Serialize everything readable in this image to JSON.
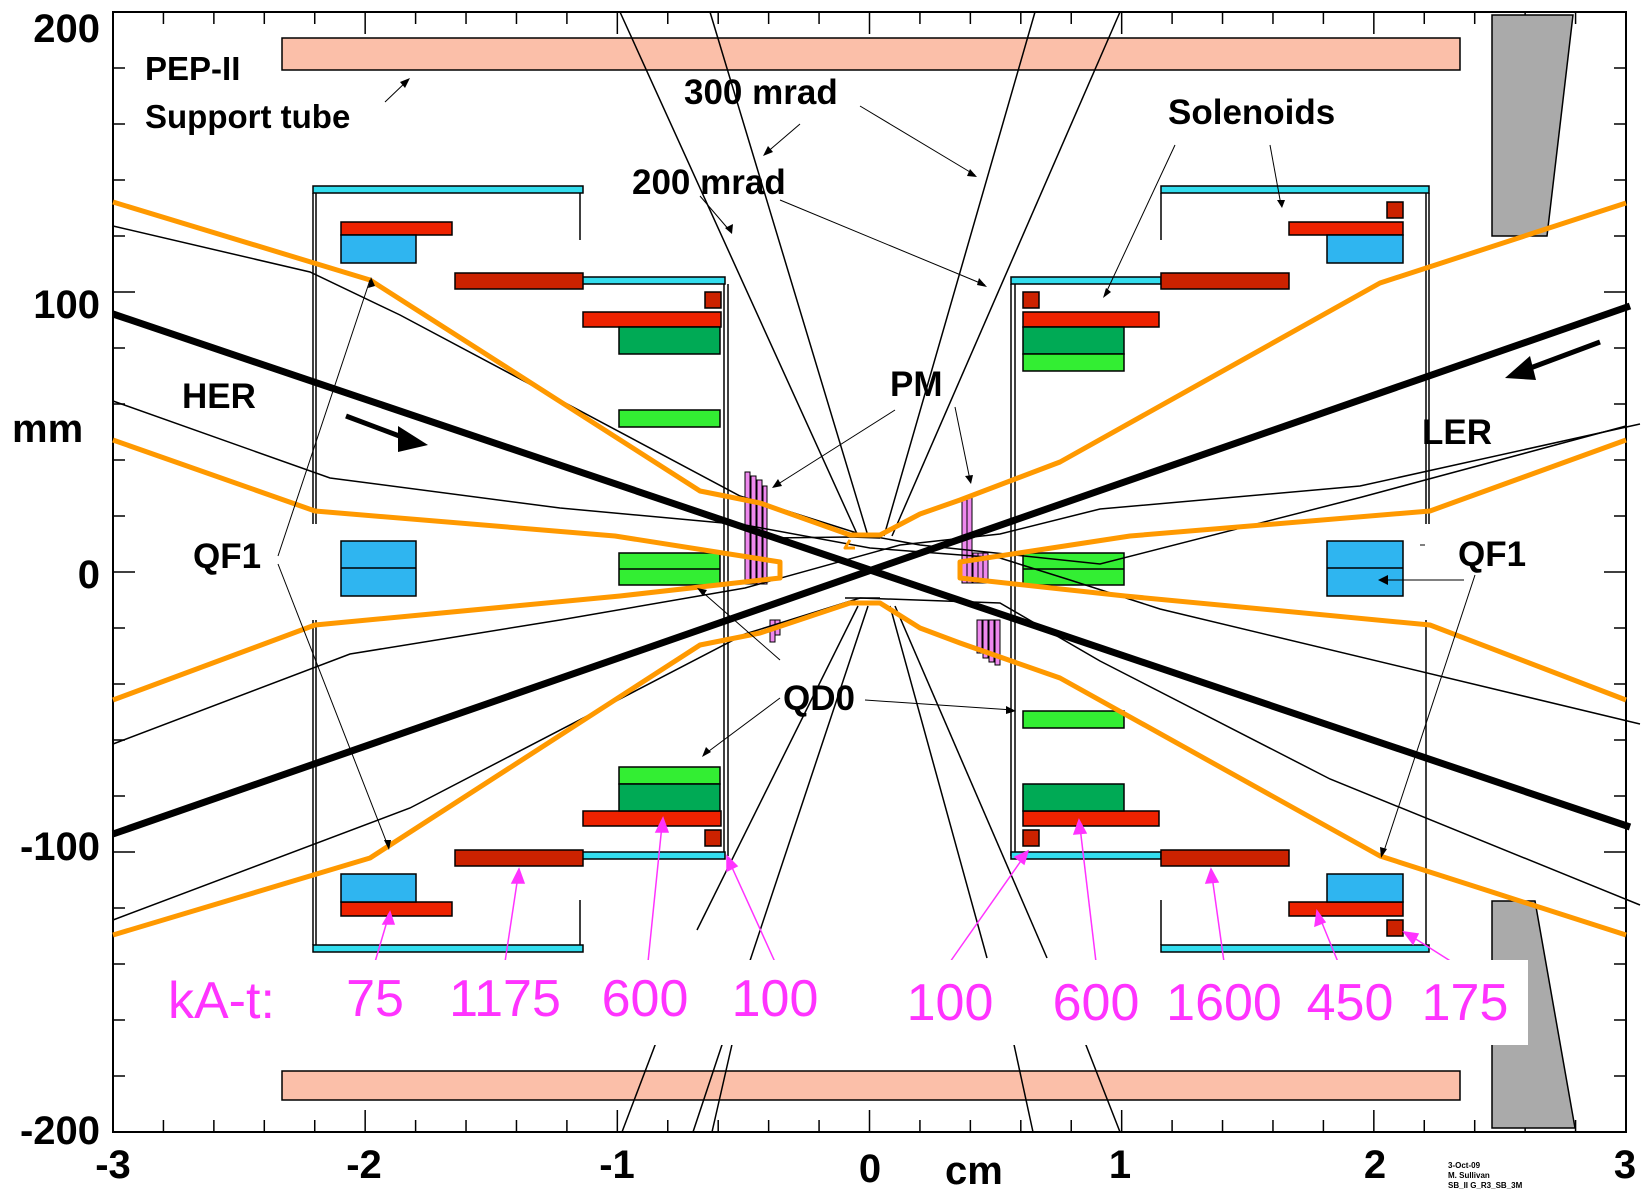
{
  "y_ticks": [
    "200",
    "100",
    "0",
    "-100",
    "-200"
  ],
  "x_ticks": [
    "-3",
    "-2",
    "-1",
    "0",
    "1",
    "2",
    "3"
  ],
  "y_unit": "mm",
  "x_unit": "cm",
  "labels": {
    "support_tube_1": "PEP-II",
    "support_tube_2": "Support tube",
    "mrad_300": "300 mrad",
    "mrad_200": "200 mrad",
    "solenoids": "Solenoids",
    "her": "HER",
    "ler": "LER",
    "pm": "PM",
    "qf1_left": "QF1",
    "qf1_right": "QF1",
    "qd0": "QD0"
  },
  "currents": {
    "prefix": "kA-t:",
    "values": [
      "75",
      "1175",
      "600",
      "100",
      "100",
      "600",
      "1600",
      "450",
      "175"
    ]
  },
  "footer": [
    "3-Oct-09",
    "M. Sullivan",
    "SB_II G_R3_SB_3M"
  ],
  "colors": {
    "support_tube": "#fbbfa9",
    "beam_envelope": "#ff9900",
    "cyan_yoke": "#33ddee",
    "blue_block": "#2fb5f0",
    "red_coil": "#ee2200",
    "dark_red": "#cc2200",
    "dark_green": "#00aa55",
    "light_green": "#33ee33",
    "pm_magenta": "#ee88ee",
    "grey_block": "#aaaaaa",
    "annotation_magenta": "#ff33ff"
  }
}
